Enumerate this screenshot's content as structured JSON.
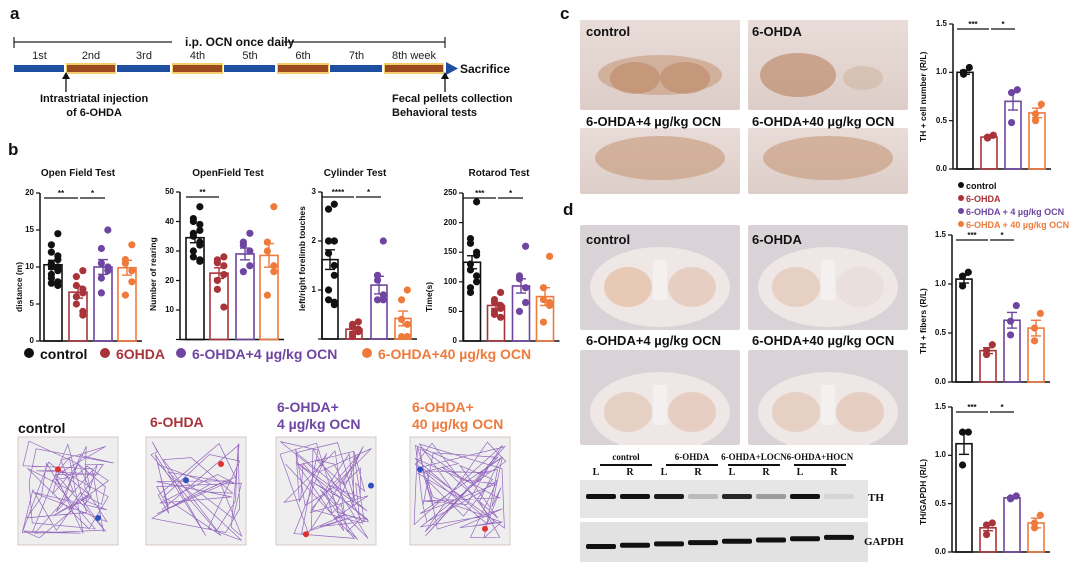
{
  "colors": {
    "control": "#111111",
    "ohda": "#a8343a",
    "low": "#6e45a0",
    "high": "#ee7a3c",
    "timeline_blue": "#1f4fa0",
    "timeline_brown": "#9a4a1e",
    "timeline_yellow": "#f2cf6a"
  },
  "panel_a": {
    "label": "a",
    "bracket_text": "i.p. OCN once daily",
    "weeks": [
      "1st",
      "2nd",
      "3rd",
      "4th",
      "5th",
      "6th",
      "7th",
      "8th week"
    ],
    "end_label": "Sacrifice",
    "annotation_left": [
      "Intrastriatal injection",
      "of 6-OHDA"
    ],
    "annotation_right": [
      "Fecal pellets collection",
      "Behavioral tests"
    ]
  },
  "panel_b": {
    "label": "b",
    "legend": [
      "control",
      "6OHDA",
      "6-OHDA+4 µg/kg OCN",
      "6-OHDA+40 µg/kg OCN"
    ],
    "track_labels": [
      [
        "control",
        ""
      ],
      [
        "6-OHDA",
        ""
      ],
      [
        "6-OHDA+",
        "4 µg/kg OCN"
      ],
      [
        "6-OHDA+",
        "40 µg/kg OCN"
      ]
    ]
  },
  "panel_c": {
    "label": "c",
    "image_labels": [
      "control",
      "6-OHDA",
      "6-OHDA+4 µg/kg OCN",
      "6-OHDA+40 µg/kg OCN"
    ],
    "legend": [
      "control",
      "6-OHDA",
      "6-OHDA + 4 µg/kg OCN",
      "6-OHDA + 40 µg/kg OCN"
    ]
  },
  "panel_d": {
    "label": "d",
    "image_labels": [
      "control",
      "6-OHDA",
      "6-OHDA+4 µg/kg OCN",
      "6-OHDA+40 µg/kg OCN"
    ],
    "western": {
      "groups": [
        "control",
        "6-OHDA",
        "6-OHDA+LOCN",
        "6-OHDA+HOCN"
      ],
      "lanes": [
        "L",
        "R",
        "L",
        "R",
        "L",
        "R",
        "L",
        "R"
      ],
      "bands": [
        "TH",
        "GAPDH"
      ]
    }
  },
  "chart_data": [
    {
      "id": "open-field-distance",
      "type": "bar",
      "title": "Open Field Test",
      "ylabel": "distance (m)",
      "ylim": [
        0,
        20
      ],
      "yticks": [
        "0",
        "5",
        "10",
        "15",
        "20"
      ],
      "groups": [
        {
          "name": "control",
          "mean": 10.3,
          "sem": 0.6,
          "points": [
            14.5,
            13,
            12,
            11.5,
            11,
            10.5,
            10,
            10,
            9.5,
            9,
            8.5,
            8,
            7.5,
            7.8
          ]
        },
        {
          "name": "6OHDA",
          "mean": 6.6,
          "sem": 0.8,
          "points": [
            9.5,
            8.7,
            7.5,
            7,
            6.5,
            6,
            5,
            4,
            3.5
          ]
        },
        {
          "name": "6-OHDA+4 µg/kg OCN",
          "mean": 10,
          "sem": 1,
          "points": [
            15,
            12.5,
            10.5,
            10,
            9.5,
            8.5,
            6.5
          ]
        },
        {
          "name": "6-OHDA+40 µg/kg OCN",
          "mean": 9.9,
          "sem": 1,
          "points": [
            13,
            11,
            10.5,
            9.5,
            8,
            6.2
          ]
        }
      ],
      "significance": [
        {
          "from": 0,
          "to": 1,
          "label": "**"
        },
        {
          "from": 1,
          "to": 2,
          "label": "*"
        }
      ]
    },
    {
      "id": "open-field-rearing",
      "type": "bar",
      "title": "OpenField Test",
      "ylabel": "Number of rearing",
      "ylim": [
        0,
        50
      ],
      "yticks": [
        "",
        "10",
        "20",
        "30",
        "40",
        "50"
      ],
      "groups": [
        {
          "name": "control",
          "mean": 34.5,
          "sem": 1.7,
          "points": [
            45,
            41,
            40,
            39,
            37,
            36,
            35,
            33,
            32,
            30,
            28,
            27,
            26.5
          ]
        },
        {
          "name": "6OHDA",
          "mean": 22.5,
          "sem": 1.8,
          "points": [
            28,
            27,
            26,
            25,
            22,
            20,
            17,
            11
          ]
        },
        {
          "name": "6-OHDA+4 µg/kg OCN",
          "mean": 29,
          "sem": 2,
          "points": [
            36,
            33,
            32,
            30,
            25,
            23
          ]
        },
        {
          "name": "6-OHDA+40 µg/kg OCN",
          "mean": 28.5,
          "sem": 4,
          "points": [
            45,
            33,
            30,
            25,
            23,
            15
          ]
        }
      ],
      "significance": [
        {
          "from": 0,
          "to": 1,
          "label": "**"
        }
      ]
    },
    {
      "id": "cylinder",
      "type": "bar",
      "title": "Cylinder Test",
      "ylabel": "left/right forelimb touches",
      "ylim": [
        0,
        3
      ],
      "yticks": [
        "",
        "1",
        "2",
        "3"
      ],
      "groups": [
        {
          "name": "control",
          "mean": 1.62,
          "sem": 0.2,
          "points": [
            2.75,
            2.65,
            2,
            2,
            2,
            2,
            1.75,
            1.5,
            1.3,
            1,
            0.8,
            0.75,
            0.7
          ]
        },
        {
          "name": "6OHDA",
          "mean": 0.2,
          "sem": 0.05,
          "points": [
            0.35,
            0.3,
            0.25,
            0.2,
            0.15,
            0.1,
            0.05
          ]
        },
        {
          "name": "6-OHDA+4 µg/kg OCN",
          "mean": 1.1,
          "sem": 0.18,
          "points": [
            2,
            1.3,
            1.2,
            0.9,
            0.8,
            0.8
          ]
        },
        {
          "name": "6-OHDA+40 µg/kg OCN",
          "mean": 0.42,
          "sem": 0.15,
          "points": [
            1,
            0.8,
            0.4,
            0.3,
            0.05,
            0.05
          ]
        }
      ],
      "significance": [
        {
          "from": 0,
          "to": 1,
          "label": "****"
        },
        {
          "from": 1,
          "to": 2,
          "label": "*"
        }
      ]
    },
    {
      "id": "rotarod",
      "type": "bar",
      "title": "Rotarod Test",
      "ylabel": "Time(s)",
      "ylim": [
        0,
        250
      ],
      "yticks": [
        "0",
        "50",
        "100",
        "150",
        "200",
        "250"
      ],
      "groups": [
        {
          "name": "control",
          "mean": 133,
          "sem": 11,
          "points": [
            235,
            173,
            165,
            150,
            145,
            130,
            120,
            110,
            100,
            90,
            82
          ]
        },
        {
          "name": "6OHDA",
          "mean": 60,
          "sem": 5,
          "points": [
            82,
            70,
            65,
            60,
            55,
            50,
            45,
            40
          ]
        },
        {
          "name": "6-OHDA+4 µg/kg OCN",
          "mean": 93,
          "sem": 12,
          "points": [
            160,
            110,
            105,
            90,
            65,
            50
          ]
        },
        {
          "name": "6-OHDA+40 µg/kg OCN",
          "mean": 75,
          "sem": 15,
          "points": [
            143,
            90,
            70,
            65,
            60,
            32
          ]
        }
      ],
      "significance": [
        {
          "from": 0,
          "to": 1,
          "label": "***"
        },
        {
          "from": 1,
          "to": 2,
          "label": "*"
        }
      ]
    },
    {
      "id": "th-cell-number",
      "type": "bar",
      "title": "",
      "ylabel": "TH + cell number (R/L)",
      "ylim": [
        0,
        1.5
      ],
      "yticks": [
        "0.0",
        "0.5",
        "1.0",
        "1.5"
      ],
      "groups": [
        {
          "name": "control",
          "mean": 1.0,
          "sem": 0.02,
          "points": [
            1.05,
            0.98,
            1.0
          ]
        },
        {
          "name": "6-OHDA",
          "mean": 0.33,
          "sem": 0.01,
          "points": [
            0.35,
            0.33,
            0.32
          ]
        },
        {
          "name": "6-OHDA + 4 µg/kg OCN",
          "mean": 0.7,
          "sem": 0.09,
          "points": [
            0.82,
            0.79,
            0.48
          ]
        },
        {
          "name": "6-OHDA + 40 µg/kg OCN",
          "mean": 0.58,
          "sem": 0.05,
          "points": [
            0.67,
            0.57,
            0.5
          ]
        }
      ],
      "significance": [
        {
          "from": 0,
          "to": 1,
          "label": "***"
        },
        {
          "from": 1,
          "to": 2,
          "label": "*"
        }
      ]
    },
    {
      "id": "th-fibers",
      "type": "bar",
      "title": "",
      "ylabel": "TH + fibers (R/L)",
      "ylim": [
        0,
        1.5
      ],
      "yticks": [
        "0.0",
        "0.5",
        "1.0",
        "1.5"
      ],
      "groups": [
        {
          "name": "control",
          "mean": 1.05,
          "sem": 0.04,
          "points": [
            1.12,
            1.08,
            0.98
          ]
        },
        {
          "name": "6-OHDA",
          "mean": 0.32,
          "sem": 0.03,
          "points": [
            0.38,
            0.32,
            0.28
          ]
        },
        {
          "name": "6-OHDA + 4 µg/kg OCN",
          "mean": 0.63,
          "sem": 0.08,
          "points": [
            0.78,
            0.62,
            0.48
          ]
        },
        {
          "name": "6-OHDA + 40 µg/kg OCN",
          "mean": 0.55,
          "sem": 0.08,
          "points": [
            0.7,
            0.55,
            0.42
          ]
        }
      ],
      "significance": [
        {
          "from": 0,
          "to": 1,
          "label": "***"
        },
        {
          "from": 1,
          "to": 2,
          "label": "*"
        }
      ]
    },
    {
      "id": "th-gapdh",
      "type": "bar",
      "title": "",
      "ylabel": "TH/GAPDH (R/L)",
      "ylim": [
        0,
        1.5
      ],
      "yticks": [
        "0.0",
        "0.5",
        "1.0",
        "1.5"
      ],
      "groups": [
        {
          "name": "control",
          "mean": 1.12,
          "sem": 0.11,
          "points": [
            1.24,
            1.24,
            0.9
          ]
        },
        {
          "name": "6-OHDA",
          "mean": 0.25,
          "sem": 0.03,
          "points": [
            0.3,
            0.28,
            0.18
          ]
        },
        {
          "name": "6-OHDA + 4 µg/kg OCN",
          "mean": 0.56,
          "sem": 0.01,
          "points": [
            0.58,
            0.56,
            0.55
          ]
        },
        {
          "name": "6-OHDA + 40 µg/kg OCN",
          "mean": 0.3,
          "sem": 0.05,
          "points": [
            0.38,
            0.3,
            0.25
          ]
        }
      ],
      "significance": [
        {
          "from": 0,
          "to": 1,
          "label": "***"
        },
        {
          "from": 1,
          "to": 2,
          "label": "*"
        }
      ]
    }
  ]
}
